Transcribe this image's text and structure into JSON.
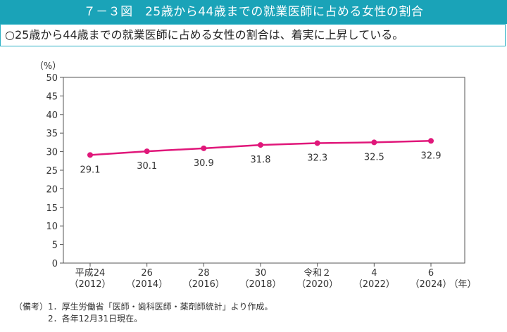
{
  "title": "７－３図　25歳から44歳までの就業医師に占める女性の割合",
  "summary": "○25歳から44歳までの就業医師に占める女性の割合は、着実に上昇している。",
  "chart_data": {
    "type": "line",
    "y_unit": "（%）",
    "x_unit": "（年）",
    "ylim": [
      0,
      50
    ],
    "y_ticks": [
      "0",
      "5",
      "10",
      "15",
      "20",
      "25",
      "30",
      "35",
      "40",
      "45",
      "50"
    ],
    "categories": [
      {
        "era": "平成24",
        "year": "（2012）"
      },
      {
        "era": "26",
        "year": "（2014）"
      },
      {
        "era": "28",
        "year": "（2016）"
      },
      {
        "era": "30",
        "year": "（2018）"
      },
      {
        "era": "令和２",
        "year": "（2020）"
      },
      {
        "era": "4",
        "year": "（2022）"
      },
      {
        "era": "6",
        "year": "（2024）"
      }
    ],
    "series": [
      {
        "values": [
          29.1,
          30.1,
          30.9,
          31.8,
          32.3,
          32.5,
          32.9
        ],
        "color": "#e0177a"
      }
    ],
    "data_labels": [
      "29.1",
      "30.1",
      "30.9",
      "31.8",
      "32.3",
      "32.5",
      "32.9"
    ],
    "grid": false
  },
  "notes": {
    "label": "（備考）",
    "items": [
      "1．厚生労働省「医師・歯科医師・薬剤師統計」より作成。",
      "2．各年12月31日現在。"
    ]
  }
}
